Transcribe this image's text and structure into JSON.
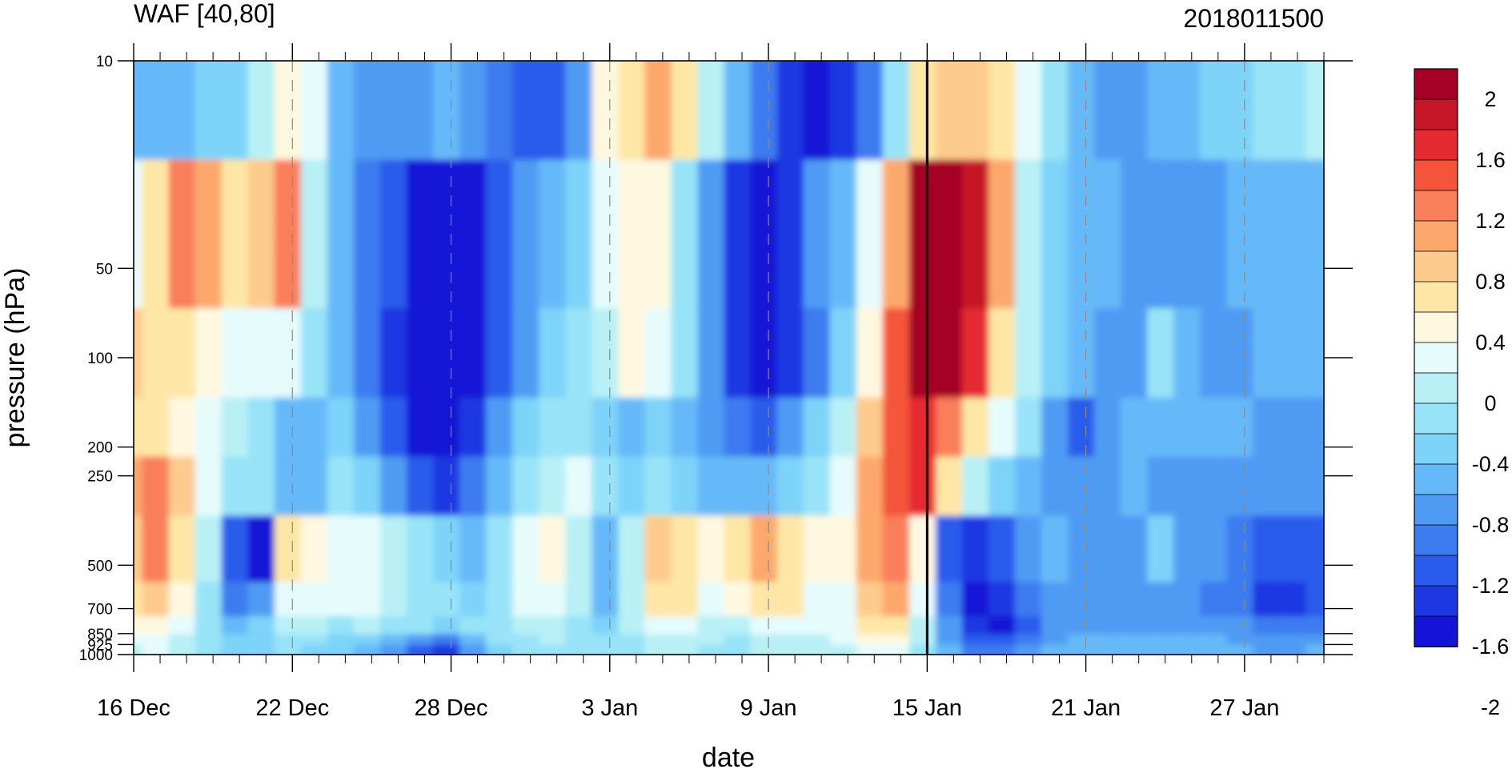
{
  "chart_data": {
    "type": "heatmap",
    "title": "WAF [40,80]",
    "subtitle": "2018011500",
    "xlabel": "date",
    "ylabel": "pressure (hPa)",
    "x_ticks": [
      "16 Dec",
      "22 Dec",
      "28 Dec",
      "3 Jan",
      "9 Jan",
      "15 Jan",
      "21 Jan",
      "27 Jan"
    ],
    "y_ticks": [
      10,
      50,
      100,
      200,
      250,
      500,
      700,
      850,
      925,
      1000
    ],
    "y_scale": "log",
    "colorbar": {
      "labels": [
        "2",
        "1.6",
        "1.2",
        "0.8",
        "0.4",
        "0",
        "-0.4",
        "-0.8",
        "-1.2",
        "-1.6",
        "-2"
      ],
      "colors": [
        "#a50026",
        "#c61628",
        "#e52a31",
        "#f4553a",
        "#f97e5a",
        "#fca86c",
        "#fdcb8d",
        "#fee6a6",
        "#fff8e0",
        "#e6fbfc",
        "#b8f0f6",
        "#98e3f7",
        "#7ed3f9",
        "#66b9f8",
        "#4f9bf4",
        "#3c7cf0",
        "#2b5bec",
        "#1d38e2",
        "#1414d6"
      ]
    },
    "marker": {
      "date": "15 Jan",
      "label": "2018011500"
    },
    "columns": [
      "16 Dec",
      "17 Dec",
      "18 Dec",
      "19 Dec",
      "20 Dec",
      "21 Dec",
      "22 Dec",
      "23 Dec",
      "24 Dec",
      "25 Dec",
      "26 Dec",
      "27 Dec",
      "28 Dec",
      "29 Dec",
      "30 Dec",
      "31 Dec",
      "1 Jan",
      "2 Jan",
      "3 Jan",
      "4 Jan",
      "5 Jan",
      "6 Jan",
      "7 Jan",
      "8 Jan",
      "9 Jan",
      "10 Jan",
      "11 Jan",
      "12 Jan",
      "13 Jan",
      "14 Jan",
      "15 Jan",
      "16 Jan",
      "17 Jan",
      "18 Jan",
      "19 Jan",
      "20 Jan",
      "21 Jan",
      "22 Jan",
      "23 Jan",
      "24 Jan",
      "25 Jan",
      "26 Jan",
      "27 Jan",
      "28 Jan",
      "29 Jan",
      "30 Jan"
    ],
    "levels_hpa": [
      10,
      50,
      100,
      200,
      250,
      500,
      700,
      850,
      925,
      1000
    ],
    "values": [
      [
        -0.3,
        -0.3,
        -0.4,
        -0.2,
        -0.1,
        0.2,
        0.6,
        0.5,
        -0.3,
        -0.6,
        -0.5,
        -0.5,
        -0.3,
        -0.6,
        -0.8,
        -0.9,
        -0.9,
        -0.6,
        0.6,
        0.9,
        1.3,
        0.9,
        0.3,
        -0.3,
        -0.8,
        -1.2,
        -1.6,
        -1.2,
        -0.7,
        0.0,
        0.9,
        1.1,
        1.1,
        0.9,
        0.4,
        0.1,
        -0.3,
        -0.5,
        -0.5,
        -0.4,
        -0.3,
        -0.2,
        -0.1,
        0.0,
        0.1,
        0.2
      ],
      [
        0.5,
        0.8,
        1.4,
        1.2,
        0.8,
        1.0,
        1.5,
        0.3,
        -0.4,
        -0.8,
        -1.0,
        -1.4,
        -1.5,
        -1.3,
        -0.9,
        -0.6,
        -0.3,
        -0.1,
        0.4,
        0.7,
        0.6,
        0.1,
        -0.5,
        -1.1,
        -1.4,
        -1.1,
        -0.6,
        -0.3,
        0.5,
        1.2,
        2.2,
        2.4,
        2.1,
        1.2,
        0.3,
        -0.1,
        -0.3,
        -0.4,
        -0.5,
        -0.5,
        -0.5,
        -0.5,
        -0.4,
        -0.4,
        -0.3,
        -0.3
      ],
      [
        1.0,
        0.9,
        0.8,
        0.6,
        0.5,
        0.4,
        0.5,
        0.1,
        -0.3,
        -0.7,
        -1.2,
        -1.6,
        -2.1,
        -1.5,
        -0.9,
        -0.5,
        -0.2,
        0.0,
        0.3,
        0.6,
        0.5,
        0.0,
        -0.6,
        -1.2,
        -1.6,
        -1.2,
        -0.7,
        -0.2,
        0.6,
        1.6,
        2.3,
        2.3,
        1.8,
        0.9,
        0.2,
        -0.2,
        -0.4,
        -0.5,
        -0.5,
        0.1,
        -0.4,
        -0.5,
        -0.5,
        -0.4,
        -0.4,
        -0.4
      ],
      [
        0.9,
        0.8,
        0.6,
        0.4,
        0.2,
        0.0,
        -0.3,
        -0.4,
        -0.2,
        -0.5,
        -0.9,
        -1.3,
        -1.6,
        -1.1,
        -0.6,
        -0.2,
        0.0,
        0.1,
        -0.2,
        -0.3,
        -0.2,
        -0.3,
        -0.5,
        -0.8,
        -0.9,
        -0.6,
        -0.2,
        0.3,
        1.1,
        1.6,
        1.8,
        1.4,
        0.9,
        0.4,
        0.0,
        -0.5,
        -1.0,
        -0.5,
        -0.3,
        -0.4,
        -0.4,
        -0.4,
        -0.4,
        -0.5,
        -0.5,
        -0.5
      ],
      [
        1.3,
        1.5,
        1.0,
        0.4,
        0.1,
        0.0,
        -0.4,
        -0.3,
        0.0,
        -0.2,
        -0.5,
        -0.9,
        -1.2,
        -0.7,
        -0.3,
        0.1,
        0.3,
        0.4,
        0.0,
        -0.2,
        0.0,
        -0.1,
        -0.3,
        -0.4,
        -0.3,
        -0.1,
        0.1,
        0.5,
        1.2,
        1.7,
        1.8,
        0.8,
        0.2,
        -0.2,
        -0.4,
        -0.5,
        -0.6,
        -0.5,
        -0.4,
        -0.5,
        -0.5,
        -0.5,
        -0.5,
        -0.6,
        -0.6,
        -0.6
      ],
      [
        1.0,
        1.4,
        0.9,
        0.2,
        -0.9,
        -1.8,
        0.8,
        0.6,
        0.4,
        0.4,
        0.3,
        0.1,
        -0.2,
        -0.3,
        0.1,
        0.4,
        0.6,
        0.2,
        -0.4,
        0.3,
        1.1,
        0.9,
        0.6,
        0.8,
        1.2,
        0.9,
        0.6,
        0.6,
        1.2,
        1.4,
        0.6,
        -0.9,
        -1.2,
        -1.0,
        -0.6,
        -0.3,
        -0.5,
        -0.6,
        -0.5,
        -0.2,
        -0.5,
        -0.6,
        -0.7,
        -0.9,
        -1.0,
        -1.0
      ],
      [
        0.9,
        1.1,
        0.6,
        0.1,
        -0.7,
        -0.5,
        0.5,
        0.5,
        0.4,
        0.4,
        0.2,
        0.1,
        0.0,
        -0.1,
        0.1,
        0.4,
        0.5,
        0.2,
        -0.3,
        0.2,
        0.9,
        0.8,
        0.5,
        0.6,
        0.9,
        0.8,
        0.5,
        0.5,
        1.1,
        1.3,
        0.5,
        -0.8,
        -1.4,
        -1.2,
        -0.8,
        -0.5,
        -0.5,
        -0.6,
        -0.6,
        -0.6,
        -0.6,
        -0.7,
        -0.8,
        -1.1,
        -1.1,
        -1.0
      ],
      [
        0.6,
        0.7,
        0.4,
        0.0,
        -0.3,
        -0.2,
        0.2,
        0.2,
        0.1,
        0.2,
        0.1,
        0.0,
        -0.1,
        0.0,
        0.1,
        0.2,
        0.3,
        0.1,
        -0.1,
        0.2,
        0.5,
        0.4,
        0.3,
        0.3,
        0.5,
        0.4,
        0.4,
        0.5,
        0.8,
        0.9,
        0.3,
        -0.6,
        -1.2,
        -1.3,
        -0.9,
        -0.6,
        -0.5,
        -0.5,
        -0.5,
        -0.5,
        -0.5,
        -0.5,
        -0.6,
        -0.8,
        -0.8,
        -0.7
      ],
      [
        0.4,
        0.5,
        0.3,
        0.0,
        -0.2,
        -0.1,
        0.1,
        0.0,
        -0.1,
        -0.2,
        -0.4,
        -0.6,
        -0.8,
        -0.3,
        0.0,
        0.1,
        0.2,
        0.1,
        0.0,
        0.1,
        0.3,
        0.3,
        0.2,
        0.0,
        0.3,
        0.3,
        0.3,
        0.4,
        0.6,
        0.7,
        0.2,
        -0.5,
        -1.0,
        -1.0,
        -0.8,
        -0.5,
        -0.4,
        -0.4,
        -0.4,
        -0.4,
        -0.4,
        -0.4,
        -0.5,
        -0.6,
        -0.6,
        -0.5
      ],
      [
        0.3,
        0.4,
        0.2,
        0.0,
        -0.1,
        -0.1,
        0.0,
        -0.1,
        -0.2,
        -0.4,
        -0.6,
        -0.9,
        -1.2,
        -0.5,
        -0.1,
        0.0,
        0.1,
        0.0,
        0.0,
        0.1,
        0.2,
        0.2,
        0.1,
        0.0,
        0.2,
        0.2,
        0.2,
        0.3,
        0.4,
        0.5,
        0.1,
        -0.4,
        -0.8,
        -0.8,
        -0.6,
        -0.4,
        -0.3,
        -0.3,
        -0.3,
        -0.3,
        -0.3,
        -0.3,
        -0.4,
        -0.5,
        -0.5,
        -0.4
      ]
    ]
  }
}
